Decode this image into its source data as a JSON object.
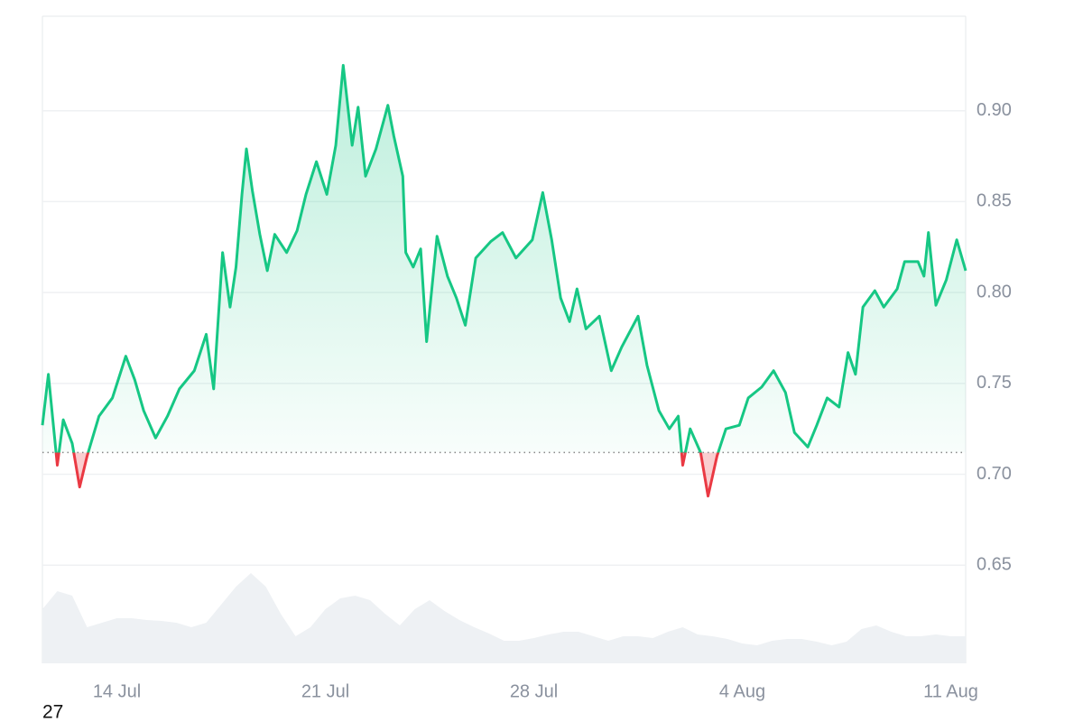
{
  "chart_data": {
    "type": "line",
    "color": "#16c784",
    "negative_color": "#ea3943",
    "baseline": 0.712,
    "grid": true,
    "xlim": [
      11.5,
      42.5
    ],
    "ylim": [
      0.596,
      0.952
    ],
    "xticks": [
      {
        "value": 14,
        "label": "14 Jul"
      },
      {
        "value": 21,
        "label": "21 Jul"
      },
      {
        "value": 28,
        "label": "28 Jul"
      },
      {
        "value": 35,
        "label": "4 Aug"
      },
      {
        "value": 42,
        "label": "11 Aug"
      }
    ],
    "yticks": [
      0.65,
      {
        "value": 0.7,
        "label": "0.70"
      },
      0.75,
      {
        "value": 0.8,
        "label": "0.80"
      },
      0.85,
      {
        "value": 0.9,
        "label": "0.90"
      }
    ],
    "x": [
      11.5,
      11.7,
      12.0,
      12.2,
      12.5,
      12.75,
      13.0,
      13.4,
      13.85,
      14.3,
      14.6,
      14.9,
      15.3,
      15.7,
      16.1,
      16.6,
      17.0,
      17.25,
      17.55,
      17.8,
      18.0,
      18.2,
      18.35,
      18.55,
      18.8,
      19.05,
      19.3,
      19.7,
      20.05,
      20.35,
      20.7,
      21.05,
      21.35,
      21.6,
      21.9,
      22.1,
      22.35,
      22.7,
      23.1,
      23.3,
      23.6,
      23.7,
      23.95,
      24.2,
      24.4,
      24.75,
      25.1,
      25.4,
      25.7,
      26.05,
      26.55,
      26.95,
      27.4,
      27.95,
      28.3,
      28.6,
      28.9,
      29.2,
      29.45,
      29.75,
      30.2,
      30.6,
      30.95,
      31.5,
      31.8,
      32.2,
      32.55,
      32.85,
      33.0,
      33.25,
      33.6,
      33.85,
      34.15,
      34.45,
      34.9,
      35.2,
      35.65,
      36.05,
      36.45,
      36.75,
      37.2,
      37.5,
      37.85,
      38.25,
      38.55,
      38.8,
      39.05,
      39.45,
      39.75,
      40.2,
      40.45,
      40.9,
      41.1,
      41.25,
      41.5,
      41.85,
      42.2,
      42.5
    ],
    "values": [
      0.727,
      0.755,
      0.705,
      0.73,
      0.717,
      0.693,
      0.71,
      0.732,
      0.742,
      0.765,
      0.752,
      0.735,
      0.72,
      0.732,
      0.747,
      0.757,
      0.777,
      0.747,
      0.822,
      0.792,
      0.814,
      0.854,
      0.879,
      0.856,
      0.832,
      0.812,
      0.832,
      0.822,
      0.834,
      0.854,
      0.872,
      0.854,
      0.881,
      0.925,
      0.881,
      0.902,
      0.864,
      0.879,
      0.903,
      0.886,
      0.864,
      0.822,
      0.814,
      0.824,
      0.773,
      0.831,
      0.809,
      0.797,
      0.782,
      0.819,
      0.828,
      0.833,
      0.819,
      0.829,
      0.855,
      0.829,
      0.797,
      0.784,
      0.802,
      0.78,
      0.787,
      0.757,
      0.77,
      0.787,
      0.76,
      0.735,
      0.725,
      0.732,
      0.705,
      0.725,
      0.712,
      0.688,
      0.71,
      0.725,
      0.727,
      0.742,
      0.748,
      0.757,
      0.745,
      0.723,
      0.715,
      0.727,
      0.742,
      0.737,
      0.767,
      0.755,
      0.792,
      0.801,
      0.792,
      0.802,
      0.817,
      0.817,
      0.809,
      0.833,
      0.793,
      0.807,
      0.829,
      0.812
    ],
    "volume": {
      "color": "#eef1f4",
      "x": [
        11.5,
        12.0,
        12.5,
        13.0,
        13.5,
        14.0,
        14.5,
        15.0,
        15.5,
        16.0,
        16.5,
        17.0,
        17.5,
        18.0,
        18.5,
        19.0,
        19.5,
        20.0,
        20.5,
        21.0,
        21.5,
        22.0,
        22.5,
        23.0,
        23.5,
        24.0,
        24.5,
        25.0,
        25.5,
        26.0,
        26.5,
        27.0,
        27.5,
        28.0,
        28.5,
        29.0,
        29.5,
        30.0,
        30.5,
        31.0,
        31.5,
        32.0,
        32.5,
        33.0,
        33.5,
        34.0,
        34.5,
        35.0,
        35.5,
        36.0,
        36.5,
        37.0,
        37.5,
        38.0,
        38.5,
        39.0,
        39.5,
        40.0,
        40.5,
        41.0,
        41.5,
        42.0,
        42.5
      ],
      "values": [
        60,
        80,
        75,
        40,
        45,
        50,
        50,
        48,
        47,
        45,
        40,
        45,
        65,
        85,
        100,
        85,
        55,
        30,
        40,
        60,
        72,
        75,
        70,
        55,
        42,
        60,
        70,
        58,
        48,
        40,
        33,
        25,
        25,
        28,
        32,
        35,
        35,
        30,
        25,
        30,
        30,
        28,
        35,
        40,
        32,
        30,
        27,
        22,
        20,
        25,
        27,
        27,
        24,
        20,
        24,
        38,
        42,
        35,
        30,
        30,
        32,
        30,
        30
      ]
    },
    "annotation": "27"
  }
}
